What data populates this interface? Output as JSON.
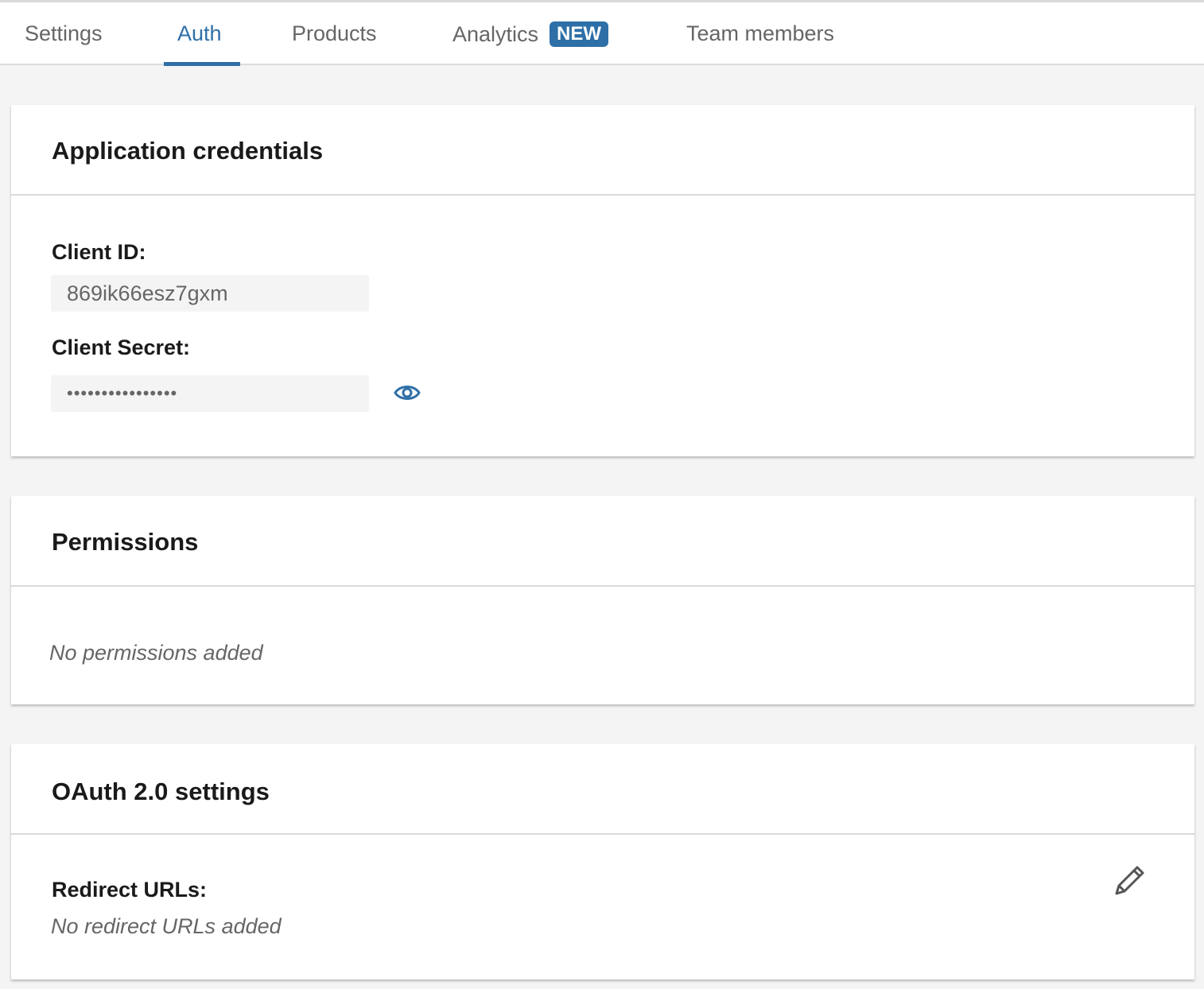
{
  "tabs": [
    {
      "label": "Settings"
    },
    {
      "label": "Auth",
      "active": true
    },
    {
      "label": "Products"
    },
    {
      "label": "Analytics",
      "badge": "NEW"
    },
    {
      "label": "Team members"
    }
  ],
  "accent_color": "#2e6fa7",
  "credentials": {
    "title": "Application credentials",
    "client_id_label": "Client ID:",
    "client_id_value": "869ik66esz7gxm",
    "client_secret_label": "Client Secret:",
    "client_secret_value": "••••••••••••••••",
    "reveal_icon": "eye-icon"
  },
  "permissions": {
    "title": "Permissions",
    "empty_text": "No permissions added"
  },
  "oauth": {
    "title": "OAuth 2.0 settings",
    "redirect_label": "Redirect URLs:",
    "redirect_empty": "No redirect URLs added",
    "edit_icon": "pencil-icon"
  }
}
